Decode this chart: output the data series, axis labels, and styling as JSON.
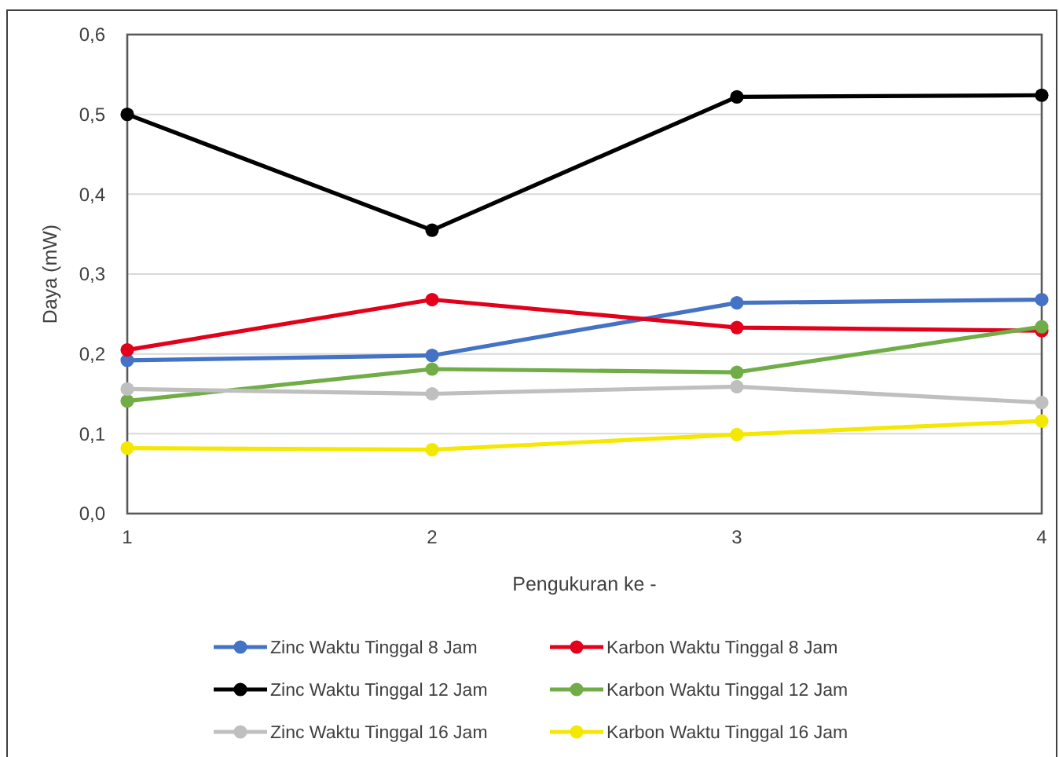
{
  "chart_data": {
    "type": "line",
    "xlabel": "Pengukuran ke -",
    "ylabel": "Daya (mW)",
    "categories": [
      "1",
      "2",
      "3",
      "4"
    ],
    "series": [
      {
        "name": "Zinc Waktu Tinggal 8 Jam",
        "color": "#4472c4",
        "values": [
          0.192,
          0.198,
          0.264,
          0.268
        ]
      },
      {
        "name": "Karbon Waktu Tinggal 8 Jam",
        "color": "#e3001b",
        "values": [
          0.205,
          0.268,
          0.233,
          0.229
        ]
      },
      {
        "name": "Zinc Waktu Tinggal 12 Jam",
        "color": "#000000",
        "values": [
          0.5,
          0.355,
          0.522,
          0.524
        ]
      },
      {
        "name": "Karbon Waktu Tinggal 12 Jam",
        "color": "#70ad47",
        "values": [
          0.141,
          0.181,
          0.177,
          0.234
        ]
      },
      {
        "name": "Zinc Waktu Tinggal 16 Jam",
        "color": "#bfbfbf",
        "values": [
          0.156,
          0.15,
          0.159,
          0.139
        ]
      },
      {
        "name": "Karbon Waktu Tinggal 16 Jam",
        "color": "#f5e800",
        "values": [
          0.082,
          0.08,
          0.099,
          0.116
        ]
      }
    ],
    "ylim": [
      0,
      0.6
    ],
    "yticks": [
      {
        "value": 0,
        "label": "0,0"
      },
      {
        "value": 0.1,
        "label": "0,1"
      },
      {
        "value": 0.2,
        "label": "0,2"
      },
      {
        "value": 0.3,
        "label": "0,3"
      },
      {
        "value": 0.4,
        "label": "0,4"
      },
      {
        "value": 0.5,
        "label": "0,5"
      },
      {
        "value": 0.6,
        "label": "0,6"
      }
    ],
    "grid": "y",
    "legend": "bottom",
    "marker": "circle",
    "line_style": "solid"
  }
}
